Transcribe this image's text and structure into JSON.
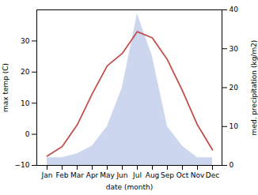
{
  "chart_data": {
    "type": "line",
    "xlabel": "date (month)",
    "ylabel": "max temp (C)",
    "y2label": "med. precipitation (kg/m2)",
    "categories": [
      "Jan",
      "Feb",
      "Mar",
      "Apr",
      "May",
      "Jun",
      "Jul",
      "Aug",
      "Sep",
      "Oct",
      "Nov",
      "Dec"
    ],
    "series": [
      {
        "type": "area",
        "axis": "y2",
        "color": "#b8c4e8",
        "values": [
          2,
          2,
          3,
          5,
          10,
          20,
          39,
          28,
          10,
          5,
          2,
          2
        ]
      },
      {
        "type": "line",
        "color": "#c0504d",
        "values": [
          -7,
          -4,
          3,
          13,
          22,
          26,
          33,
          31,
          24,
          14,
          3,
          -5
        ]
      }
    ],
    "ylim": [
      -10,
      40
    ],
    "yticks": [
      -10,
      0,
      10,
      20,
      30
    ],
    "y2lim": [
      0,
      40
    ],
    "y2ticks": [
      0,
      10,
      20,
      30,
      40
    ],
    "grid": false
  }
}
